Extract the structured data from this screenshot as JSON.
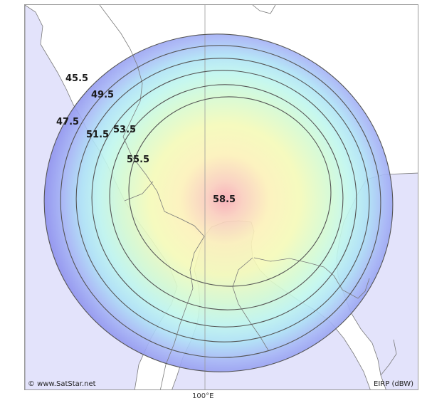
{
  "map": {
    "attribution": "© www.SatStar.net",
    "unit_label": "EIRP (dBW)",
    "longitude_label": "100°E",
    "colors": {
      "background": "#ffffff",
      "land": "#e3e3fb",
      "border": "#7a7a7a",
      "contour_line": "#555555",
      "peak": "#f7a9b3",
      "core": "#fcf7b5",
      "mid": "#c9f8e8",
      "outer": "#a6b6f6",
      "edge": "#8f92ee"
    },
    "contours": [
      {
        "value": "45.5"
      },
      {
        "value": "47.5"
      },
      {
        "value": "49.5"
      },
      {
        "value": "51.5"
      },
      {
        "value": "53.5"
      },
      {
        "value": "55.5"
      },
      {
        "value": "58.5"
      }
    ]
  }
}
